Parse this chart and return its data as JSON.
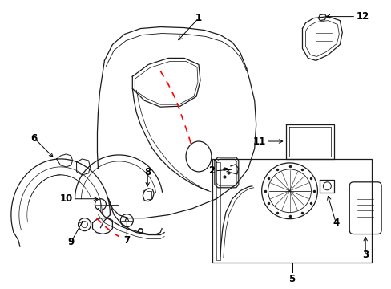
{
  "bg_color": "#ffffff",
  "line_color": "#1a1a1a",
  "red_color": "#ff0000",
  "lw": 0.9,
  "fs": 8.5
}
